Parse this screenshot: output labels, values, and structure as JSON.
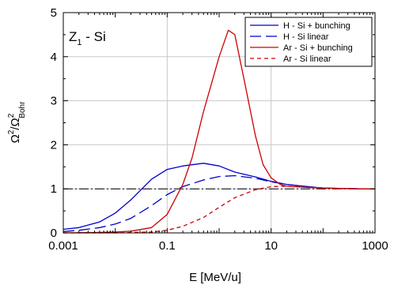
{
  "chart_data": {
    "type": "line",
    "xscale": "log",
    "xlim": [
      0.001,
      1000
    ],
    "ylim": [
      0,
      5
    ],
    "grid": true,
    "legend_position": "top-right",
    "xlabel": "E [MeV/u]",
    "ylabel": {
      "base": "Ω",
      "sup": "2",
      "sep": "/",
      "base2": "Ω",
      "sup2": "2",
      "sub2": "Bohr"
    },
    "annotation": {
      "base": "Z",
      "sub": "1",
      "rest": " - Si"
    },
    "x_ticks": [
      {
        "value": 0.001,
        "label": "0.001"
      },
      {
        "value": 0.1,
        "label": "0.1"
      },
      {
        "value": 10,
        "label": "10"
      },
      {
        "value": 1000,
        "label": "1000"
      }
    ],
    "y_ticks": [
      {
        "value": 0,
        "label": "0"
      },
      {
        "value": 1,
        "label": "1"
      },
      {
        "value": 2,
        "label": "2"
      },
      {
        "value": 3,
        "label": "3"
      },
      {
        "value": 4,
        "label": "4"
      },
      {
        "value": 5,
        "label": "5"
      }
    ],
    "reference_line": {
      "y": 1
    },
    "series": [
      {
        "name": "H - Si + bunching",
        "color": "#0000cc",
        "dash": "solid",
        "x": [
          0.001,
          0.002,
          0.005,
          0.01,
          0.02,
          0.05,
          0.1,
          0.2,
          0.5,
          1,
          2,
          5,
          10,
          20,
          50,
          100,
          200,
          500,
          1000
        ],
        "y": [
          0.08,
          0.12,
          0.25,
          0.45,
          0.75,
          1.22,
          1.44,
          1.52,
          1.58,
          1.52,
          1.38,
          1.27,
          1.17,
          1.1,
          1.05,
          1.02,
          1.01,
          1.0,
          1.0
        ]
      },
      {
        "name": "H - Si linear",
        "color": "#0000cc",
        "dash": "long",
        "x": [
          0.001,
          0.002,
          0.005,
          0.01,
          0.02,
          0.05,
          0.1,
          0.2,
          0.5,
          1,
          2,
          5,
          10,
          20,
          50,
          100,
          200,
          500,
          1000
        ],
        "y": [
          0.03,
          0.06,
          0.12,
          0.2,
          0.33,
          0.62,
          0.87,
          1.05,
          1.2,
          1.28,
          1.3,
          1.24,
          1.16,
          1.1,
          1.05,
          1.02,
          1.01,
          1.0,
          1.0
        ]
      },
      {
        "name": "Ar - Si + bunching",
        "color": "#cc0000",
        "dash": "solid",
        "x": [
          0.001,
          0.005,
          0.01,
          0.02,
          0.05,
          0.1,
          0.2,
          0.3,
          0.5,
          1,
          1.5,
          2,
          3,
          5,
          7,
          10,
          15,
          20,
          50,
          100,
          200,
          500,
          1000
        ],
        "y": [
          0.0,
          0.01,
          0.02,
          0.04,
          0.12,
          0.42,
          1.1,
          1.7,
          2.75,
          4.0,
          4.6,
          4.5,
          3.5,
          2.2,
          1.55,
          1.25,
          1.1,
          1.06,
          1.03,
          1.02,
          1.01,
          1.0,
          1.0
        ]
      },
      {
        "name": "Ar - Si linear",
        "color": "#cc0000",
        "dash": "short",
        "x": [
          0.001,
          0.01,
          0.05,
          0.1,
          0.2,
          0.5,
          1,
          2,
          5,
          10,
          20,
          50,
          100,
          200,
          500,
          1000
        ],
        "y": [
          0.0,
          0.0,
          0.02,
          0.06,
          0.15,
          0.35,
          0.58,
          0.8,
          0.98,
          1.05,
          1.06,
          1.04,
          1.02,
          1.01,
          1.0,
          1.0
        ]
      }
    ]
  }
}
